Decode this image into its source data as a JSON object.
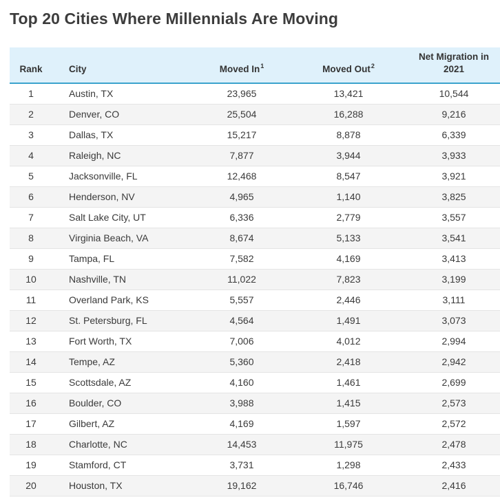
{
  "title": "Top 20 Cities Where Millennials Are Moving",
  "headers": {
    "rank": "Rank",
    "city": "City",
    "moved_in": "Moved In",
    "moved_in_sup": "1",
    "moved_out": "Moved Out",
    "moved_out_sup": "2",
    "net": "Net Migration in 2021"
  },
  "rows": [
    {
      "rank": "1",
      "city": "Austin, TX",
      "moved_in": "23,965",
      "moved_out": "13,421",
      "net": "10,544"
    },
    {
      "rank": "2",
      "city": "Denver, CO",
      "moved_in": "25,504",
      "moved_out": "16,288",
      "net": "9,216"
    },
    {
      "rank": "3",
      "city": "Dallas, TX",
      "moved_in": "15,217",
      "moved_out": "8,878",
      "net": "6,339"
    },
    {
      "rank": "4",
      "city": "Raleigh, NC",
      "moved_in": "7,877",
      "moved_out": "3,944",
      "net": "3,933"
    },
    {
      "rank": "5",
      "city": "Jacksonville, FL",
      "moved_in": "12,468",
      "moved_out": "8,547",
      "net": "3,921"
    },
    {
      "rank": "6",
      "city": "Henderson, NV",
      "moved_in": "4,965",
      "moved_out": "1,140",
      "net": "3,825"
    },
    {
      "rank": "7",
      "city": "Salt Lake City, UT",
      "moved_in": "6,336",
      "moved_out": "2,779",
      "net": "3,557"
    },
    {
      "rank": "8",
      "city": "Virginia Beach, VA",
      "moved_in": "8,674",
      "moved_out": "5,133",
      "net": "3,541"
    },
    {
      "rank": "9",
      "city": "Tampa, FL",
      "moved_in": "7,582",
      "moved_out": "4,169",
      "net": "3,413"
    },
    {
      "rank": "10",
      "city": "Nashville, TN",
      "moved_in": "11,022",
      "moved_out": "7,823",
      "net": "3,199"
    },
    {
      "rank": "11",
      "city": "Overland Park, KS",
      "moved_in": "5,557",
      "moved_out": "2,446",
      "net": "3,111"
    },
    {
      "rank": "12",
      "city": "St. Petersburg, FL",
      "moved_in": "4,564",
      "moved_out": "1,491",
      "net": "3,073"
    },
    {
      "rank": "13",
      "city": "Fort Worth, TX",
      "moved_in": "7,006",
      "moved_out": "4,012",
      "net": "2,994"
    },
    {
      "rank": "14",
      "city": "Tempe, AZ",
      "moved_in": "5,360",
      "moved_out": "2,418",
      "net": "2,942"
    },
    {
      "rank": "15",
      "city": "Scottsdale, AZ",
      "moved_in": "4,160",
      "moved_out": "1,461",
      "net": "2,699"
    },
    {
      "rank": "16",
      "city": "Boulder, CO",
      "moved_in": "3,988",
      "moved_out": "1,415",
      "net": "2,573"
    },
    {
      "rank": "17",
      "city": "Gilbert, AZ",
      "moved_in": "4,169",
      "moved_out": "1,597",
      "net": "2,572"
    },
    {
      "rank": "18",
      "city": "Charlotte, NC",
      "moved_in": "14,453",
      "moved_out": "11,975",
      "net": "2,478"
    },
    {
      "rank": "19",
      "city": "Stamford, CT",
      "moved_in": "3,731",
      "moved_out": "1,298",
      "net": "2,433"
    },
    {
      "rank": "20",
      "city": "Houston, TX",
      "moved_in": "19,162",
      "moved_out": "16,746",
      "net": "2,416"
    }
  ],
  "colors": {
    "header_bg": "#dff1fb",
    "header_rule": "#3aa2cc",
    "row_stripe": "#f4f4f4"
  }
}
